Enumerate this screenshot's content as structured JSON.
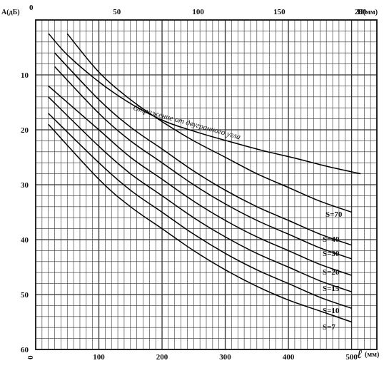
{
  "chart_data": {
    "type": "line",
    "title": "",
    "ylabel": "A(дБ)",
    "xlabel": "ℓ",
    "xlabel_unit": "(мм)",
    "x2label": "H(мм)",
    "xlim": [
      0,
      540
    ],
    "ylim": [
      0,
      60
    ],
    "x2lim": [
      0,
      210
    ],
    "y_reversed": true,
    "grid": true,
    "x_ticks": [
      0,
      100,
      200,
      300,
      400,
      500
    ],
    "x_tick_labels": [
      "0",
      "100",
      "200",
      "300",
      "400",
      "500"
    ],
    "x2_ticks": [
      50,
      100,
      150,
      200
    ],
    "x2_tick_labels": [
      "50",
      "100",
      "150",
      "200"
    ],
    "y_ticks": [
      10,
      20,
      30,
      40,
      50,
      60
    ],
    "y_tick_labels": [
      "10",
      "20",
      "30",
      "40",
      "50",
      "60"
    ],
    "origin_label": "0",
    "series": [
      {
        "name": "Отражение от двугранного угла",
        "axis": "H",
        "x": [
          8,
          20,
          40,
          60,
          80,
          100,
          120,
          140,
          160,
          180,
          200
        ],
        "y": [
          2.5,
          6.5,
          11.5,
          15.5,
          18.5,
          20.5,
          22.2,
          23.8,
          25.2,
          26.7,
          28
        ]
      },
      {
        "name": "S=70",
        "axis": "l",
        "x": [
          50,
          100,
          150,
          200,
          250,
          300,
          350,
          400,
          450,
          500
        ],
        "y": [
          2.5,
          9.5,
          14.5,
          18.5,
          22,
          25,
          28,
          30.5,
          33,
          35
        ]
      },
      {
        "name": "S=40",
        "axis": "l",
        "x": [
          30,
          100,
          150,
          200,
          250,
          300,
          350,
          400,
          450,
          500
        ],
        "y": [
          6,
          14.5,
          19.5,
          23.5,
          27.5,
          31,
          34,
          36.5,
          39,
          41
        ]
      },
      {
        "name": "S=30",
        "axis": "l",
        "x": [
          30,
          100,
          150,
          200,
          250,
          300,
          350,
          400,
          450,
          500
        ],
        "y": [
          8.5,
          17,
          22,
          26,
          30,
          33.5,
          36.5,
          39,
          41.5,
          43.5
        ]
      },
      {
        "name": "S=20",
        "axis": "l",
        "x": [
          20,
          100,
          150,
          200,
          250,
          300,
          350,
          400,
          450,
          500
        ],
        "y": [
          12,
          20,
          25,
          29,
          33,
          36.5,
          39.5,
          42,
          44.5,
          46.5
        ]
      },
      {
        "name": "S=15",
        "axis": "l",
        "x": [
          20,
          100,
          150,
          200,
          250,
          300,
          350,
          400,
          450,
          500
        ],
        "y": [
          14,
          23,
          28,
          32,
          36,
          39.5,
          42.5,
          45,
          47.5,
          49.5
        ]
      },
      {
        "name": "S=10",
        "axis": "l",
        "x": [
          20,
          100,
          150,
          200,
          250,
          300,
          350,
          400,
          450,
          500
        ],
        "y": [
          17,
          26,
          31,
          35,
          39,
          42.5,
          45.5,
          48,
          50.5,
          52.5
        ]
      },
      {
        "name": "S=7",
        "axis": "l",
        "x": [
          20,
          100,
          150,
          200,
          250,
          300,
          350,
          400,
          450,
          500
        ],
        "y": [
          19,
          29,
          34,
          38,
          42,
          45.5,
          48.5,
          51,
          53,
          55
        ]
      }
    ],
    "labels": {
      "annotation": "Отражение от двугранного угла",
      "s_labels": [
        "S=70",
        "S=40",
        "S=30",
        "S=20",
        "S=15",
        "S=10",
        "S=7"
      ]
    }
  }
}
